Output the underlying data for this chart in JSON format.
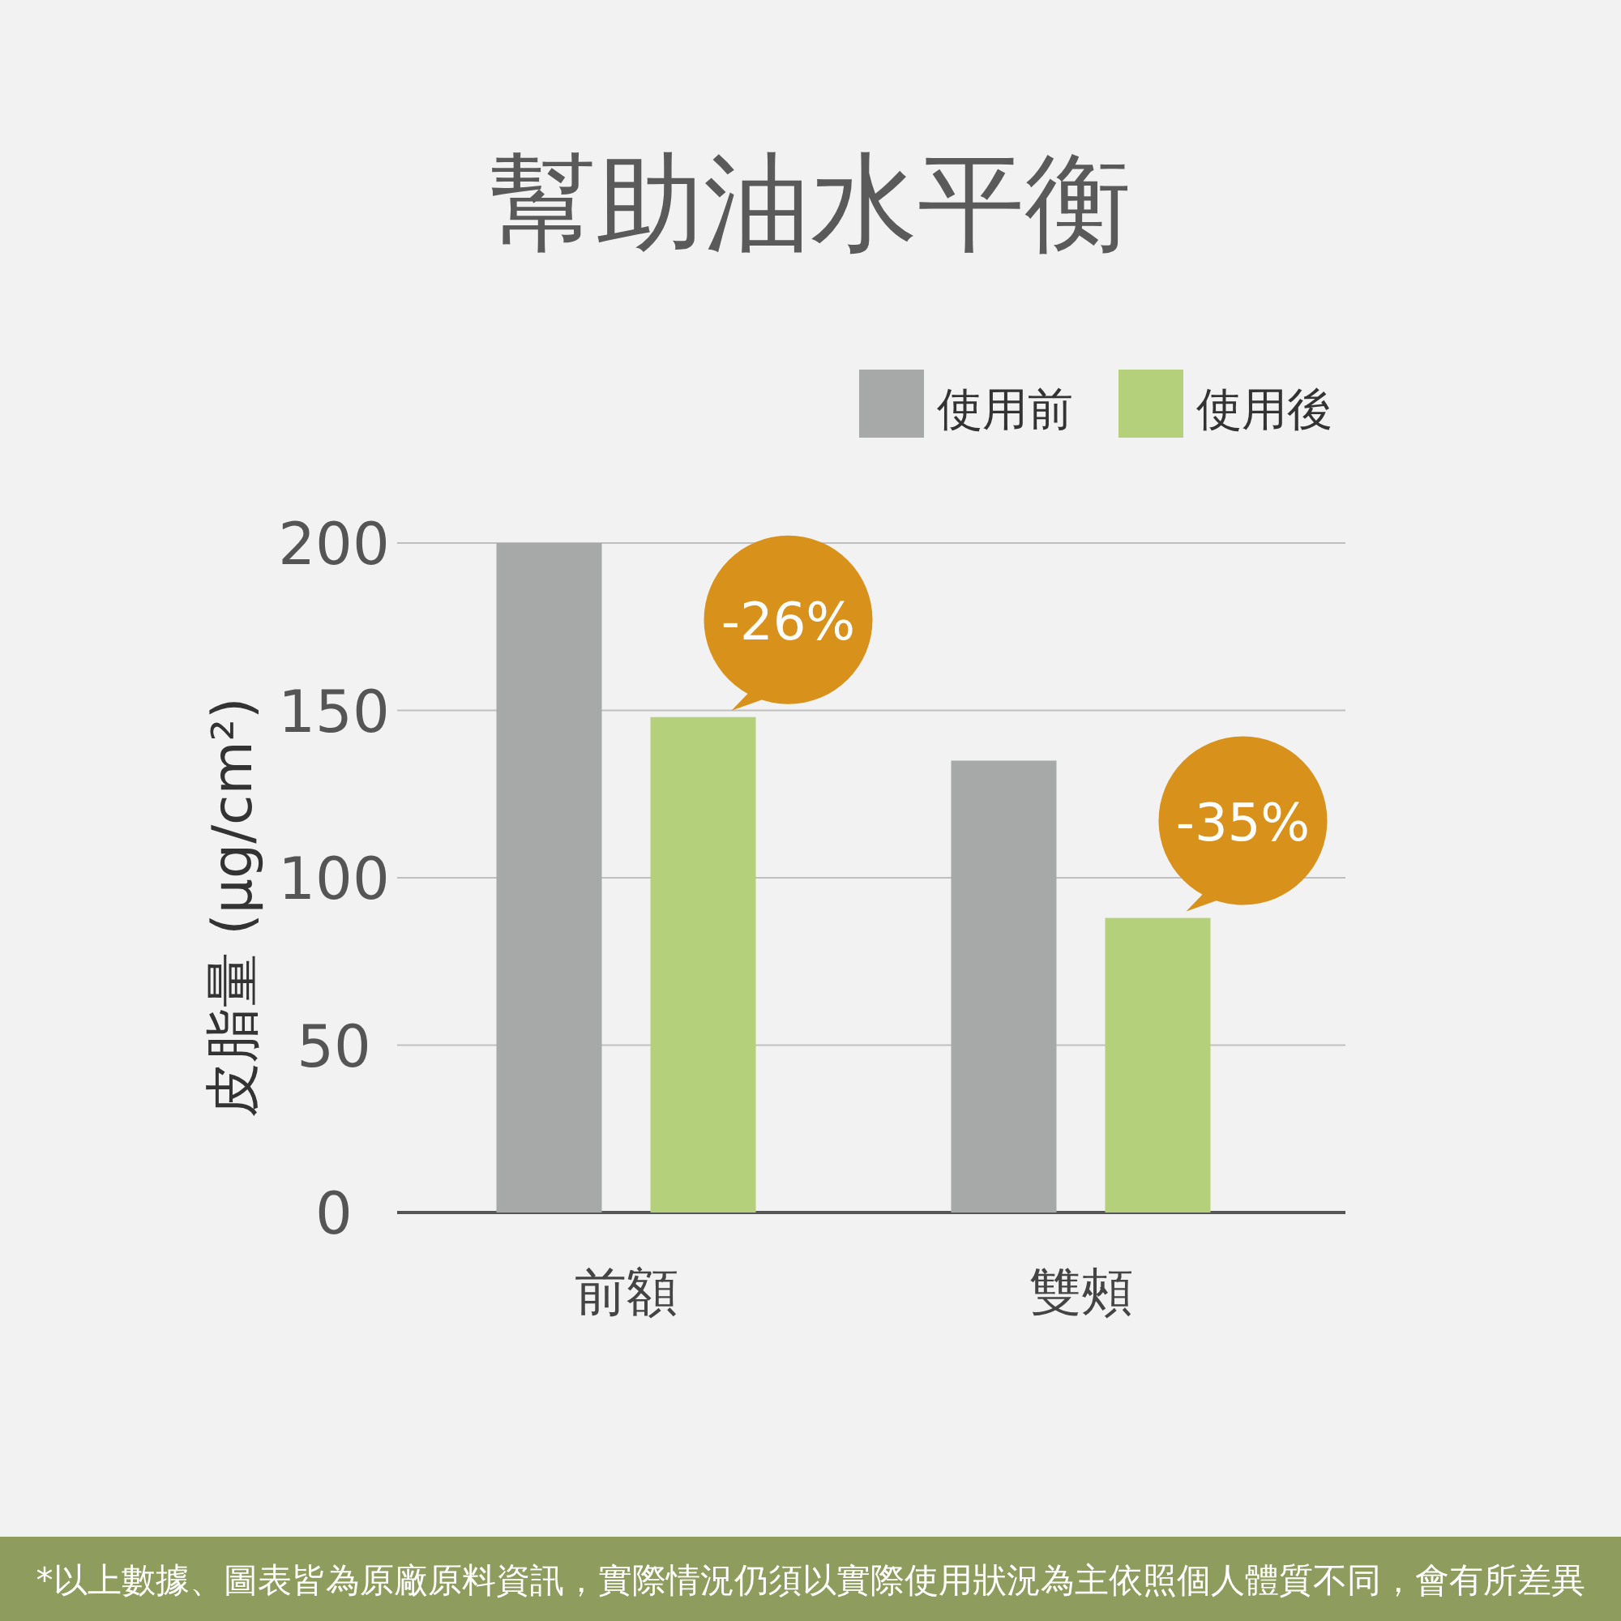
{
  "chart_data": {
    "type": "bar",
    "title": "幫助油水平衡",
    "ylabel": "皮脂量 (μg/cm²)",
    "categories": [
      "前額",
      "雙頰"
    ],
    "series": [
      {
        "name": "使用前",
        "color": "#a7a9a8",
        "values": [
          200,
          135
        ]
      },
      {
        "name": "使用後",
        "color": "#b5d07a",
        "values": [
          148,
          88
        ]
      }
    ],
    "ylim": [
      0,
      200
    ],
    "yticks": [
      0,
      50,
      100,
      150,
      200
    ],
    "grid": "y",
    "legend": "top right",
    "annotations": [
      "-26%",
      "-35%",
      "*以上數據、圖表皆為原廠原料資訊，實際情況仍須以實際使用狀況為主依照個人體質不同，會有所差異"
    ]
  }
}
